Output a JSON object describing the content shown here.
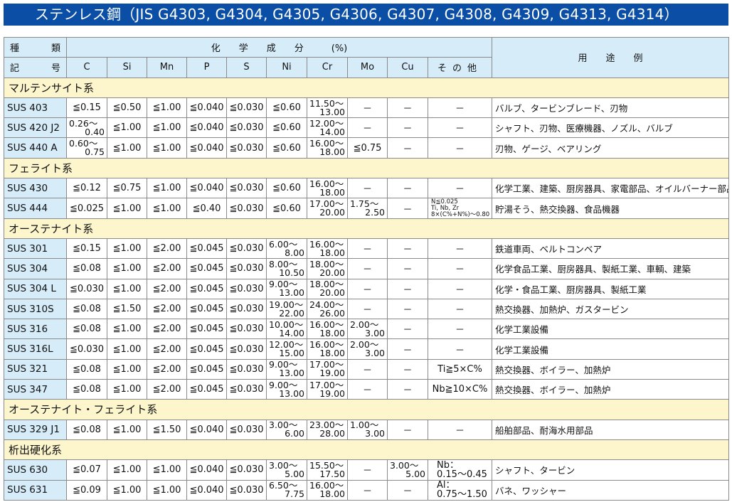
{
  "title": "ステンレス鋼（JIS G4303, G4304, G4305, G4306, G4307, G4308, G4309, G4313, G4314）",
  "colors": {
    "title_bg": "#0a4ea6",
    "header_bg": "#d6ecf9",
    "section_bg": "#fdf6cc"
  },
  "header": {
    "kind": [
      "種",
      "類"
    ],
    "symbol": [
      "記",
      "号"
    ],
    "composition": "化　　学　　成　　分　　　(%)",
    "columns": [
      "C",
      "Si",
      "Mn",
      "P",
      "S",
      "Ni",
      "Cr",
      "Mo",
      "Cu",
      "その他"
    ],
    "use": "用　　途　　例"
  },
  "sections": [
    {
      "label": "マルテンサイト系",
      "rows": [
        [
          "SUS 403",
          "≦0.15",
          "≦0.50",
          "≦1.00",
          "≦0.040",
          "≦0.030",
          "≦0.60",
          [
            "11.50～",
            "13.00"
          ],
          "－",
          "－",
          "－",
          "バルブ、タービンブレード、刃物"
        ],
        [
          "SUS 420 J2",
          [
            "0.26～",
            "0.40"
          ],
          "≦1.00",
          "≦1.00",
          "≦0.040",
          "≦0.030",
          "≦0.60",
          [
            "12.00～",
            "14.00"
          ],
          "－",
          "－",
          "－",
          "シャフト、刃物、医療機器、ノズル、バルブ"
        ],
        [
          "SUS 440 A",
          [
            "0.60～",
            "0.75"
          ],
          "≦1.00",
          "≦1.00",
          "≦0.040",
          "≦0.030",
          "≦0.60",
          [
            "16.00～",
            "18.00"
          ],
          "≦0.75",
          "－",
          "－",
          "刃物、ゲージ、ベアリング"
        ]
      ]
    },
    {
      "label": "フェライト系",
      "rows": [
        [
          "SUS 430",
          "≦0.12",
          "≦0.75",
          "≦1.00",
          "≦0.040",
          "≦0.030",
          "≦0.60",
          [
            "16.00～",
            "18.00"
          ],
          "－",
          "－",
          "－",
          "化学工業、建築、厨房器具、家電部品、オイルバーナー部品"
        ],
        [
          "SUS 444",
          "≦0.025",
          "≦1.00",
          "≦1.00",
          "≦0.40",
          "≦0.030",
          "≦0.60",
          [
            "17.00～",
            "20.00"
          ],
          [
            "1.75～",
            "2.50"
          ],
          "－",
          {
            "small": [
              "N≦0.025",
              "Ti, Nb, Zr",
              "8×(C%+N%)～0.80"
            ]
          },
          "貯湯そう、熱交換器、食品機器"
        ]
      ]
    },
    {
      "label": "オーステナイト系",
      "rows": [
        [
          "SUS 301",
          "≦0.15",
          "≦1.00",
          "≦2.00",
          "≦0.045",
          "≦0.030",
          [
            "6.00～",
            "8.00"
          ],
          [
            "16.00～",
            "18.00"
          ],
          "－",
          "－",
          "－",
          "鉄道車両、ベルトコンベア"
        ],
        [
          "SUS 304",
          "≦0.08",
          "≦1.00",
          "≦2.00",
          "≦0.045",
          "≦0.030",
          [
            "8.00～",
            "10.50"
          ],
          [
            "18.00～",
            "20.00"
          ],
          "－",
          "－",
          "－",
          "化学食品工業、厨房器具、製紙工業、車輌、建築"
        ],
        [
          "SUS 304 L",
          "≦0.030",
          "≦1.00",
          "≦2.00",
          "≦0.045",
          "≦0.030",
          [
            "9.00～",
            "13.00"
          ],
          [
            "18.00～",
            "20.00"
          ],
          "－",
          "－",
          "－",
          "化学・食品工業、厨房器具、製紙工業"
        ],
        [
          "SUS 310S",
          "≦0.08",
          "≦1.50",
          "≦2.00",
          "≦0.045",
          "≦0.030",
          [
            "19.00～",
            "22.00"
          ],
          [
            "24.00～",
            "26.00"
          ],
          "－",
          "－",
          "－",
          "熱交換器、加熱炉、ガスタービン"
        ],
        [
          "SUS 316",
          "≦0.08",
          "≦1.00",
          "≦2.00",
          "≦0.045",
          "≦0.030",
          [
            "10.00～",
            "14.00"
          ],
          [
            "16.00～",
            "18.00"
          ],
          [
            "2.00～",
            "3.00"
          ],
          "－",
          "－",
          "化学工業設備"
        ],
        [
          "SUS 316L",
          "≦0.030",
          "≦1.00",
          "≦2.00",
          "≦0.045",
          "≦0.030",
          [
            "12.00～",
            "15.00"
          ],
          [
            "16.00～",
            "18.00"
          ],
          [
            "2.00～",
            "3.00"
          ],
          "－",
          "－",
          "化学工業設備"
        ],
        [
          "SUS 321",
          "≦0.08",
          "≦1.00",
          "≦2.00",
          "≦0.045",
          "≦0.030",
          [
            "9.00～",
            "13.00"
          ],
          [
            "17.00～",
            "19.00"
          ],
          "－",
          "－",
          "Ti≧5×C%",
          "熱交換器、ボイラー、加熱炉"
        ],
        [
          "SUS 347",
          "≦0.08",
          "≦1.00",
          "≦2.00",
          "≦0.045",
          "≦0.030",
          [
            "9.00～",
            "13.00"
          ],
          [
            "17.00～",
            "19.00"
          ],
          "－",
          "－",
          "Nb≧10×C%",
          "熱交換器、ボイラー、加熱炉"
        ]
      ]
    },
    {
      "label": "オーステナイト・フェライト系",
      "rows": [
        [
          "SUS 329 J1",
          "≦0.08",
          "≦1.00",
          "≦1.50",
          "≦0.040",
          "≦0.030",
          [
            "3.00～",
            "6.00"
          ],
          [
            "23.00～",
            "28.00"
          ],
          [
            "1.00～",
            "3.00"
          ],
          "－",
          "－",
          "船舶部品、耐海水用部品"
        ]
      ]
    },
    {
      "label": "析出硬化系",
      "rows": [
        [
          "SUS 630",
          "≦0.07",
          "≦1.00",
          "≦1.00",
          "≦0.040",
          "≦0.030",
          [
            "3.00～",
            "5.00"
          ],
          [
            "15.50～",
            "17.50"
          ],
          "－",
          [
            "3.00～",
            "5.00"
          ],
          {
            "two": [
              "Nb：",
              "0.15～0.45"
            ]
          },
          "シャフト、タービン"
        ],
        [
          "SUS 631",
          "≦0.09",
          "≦1.00",
          "≦1.00",
          "≦0.040",
          "≦0.030",
          [
            "6.50～",
            "7.75"
          ],
          [
            "16.00～",
            "18.00"
          ],
          "－",
          "－",
          {
            "two": [
              "Al：",
              "0.75～1.50"
            ]
          },
          "バネ、ワッシャー"
        ]
      ]
    }
  ]
}
